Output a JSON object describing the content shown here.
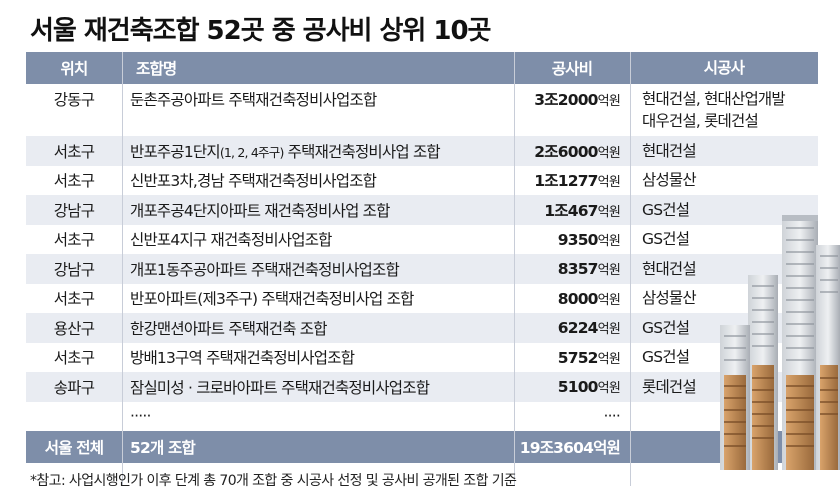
{
  "title": "서울 재건축조합 52곳 중 공사비 상위 10곳",
  "headers": {
    "loc": "위치",
    "name": "조합명",
    "cost": "공사비",
    "contractor": "시공사"
  },
  "rows": [
    {
      "loc": "강동구",
      "name": "둔촌주공아파트 주택재건축정비사업조합",
      "cost_num": "3조2000",
      "cost_unit": "억원",
      "contractor": "현대건설, 현대산업개발",
      "contractor2": "대우건설, 롯데건설"
    },
    {
      "loc": "서초구",
      "name_a": "반포주공1단지",
      "name_b": "(1, 2, 4주구)",
      "name_c": " 주택재건축정비사업 조합",
      "cost_num": "2조6000",
      "cost_unit": "억원",
      "contractor": "현대건설"
    },
    {
      "loc": "서초구",
      "name": "신반포3차,경남 주택재건축정비사업조합",
      "cost_num": "1조1277",
      "cost_unit": "억원",
      "contractor": "삼성물산"
    },
    {
      "loc": "강남구",
      "name": "개포주공4단지아파트 재건축정비사업 조합",
      "cost_num": "1조467",
      "cost_unit": "억원",
      "contractor": "GS건설"
    },
    {
      "loc": "서초구",
      "name": "신반포4지구 재건축정비사업조합",
      "cost_num": "9350",
      "cost_unit": "억원",
      "contractor": "GS건설"
    },
    {
      "loc": "강남구",
      "name": "개포1동주공아파트 주택재건축정비사업조합",
      "cost_num": "8357",
      "cost_unit": "억원",
      "contractor": "현대건설"
    },
    {
      "loc": "서초구",
      "name": "반포아파트(제3주구) 주택재건축정비사업 조합",
      "cost_num": "8000",
      "cost_unit": "억원",
      "contractor": "삼성물산"
    },
    {
      "loc": "용산구",
      "name": "한강맨션아파트 주택재건축 조합",
      "cost_num": "6224",
      "cost_unit": "억원",
      "contractor": "GS건설"
    },
    {
      "loc": "서초구",
      "name": "방배13구역 주택재건축정비사업조합",
      "cost_num": "5752",
      "cost_unit": "억원",
      "contractor": "GS건설"
    },
    {
      "loc": "송파구",
      "name": "잠실미성 · 크로바아파트 주택재건축정비사업조합",
      "cost_num": "5100",
      "cost_unit": "억원",
      "contractor": "롯데건설"
    }
  ],
  "ellipsis": {
    "name": "·····",
    "cost": "····"
  },
  "total": {
    "loc": "서울 전체",
    "name": "52개 조합",
    "cost": "19조3604억원"
  },
  "footnote": "*참고: 사업시행인가 이후 단계 총 70개 조합 중 시공사 선정 및 공사비 공개된 조합 기준",
  "colors": {
    "header_bg": "#7e8ea9",
    "stripe_bg": "#e9ecf2"
  }
}
